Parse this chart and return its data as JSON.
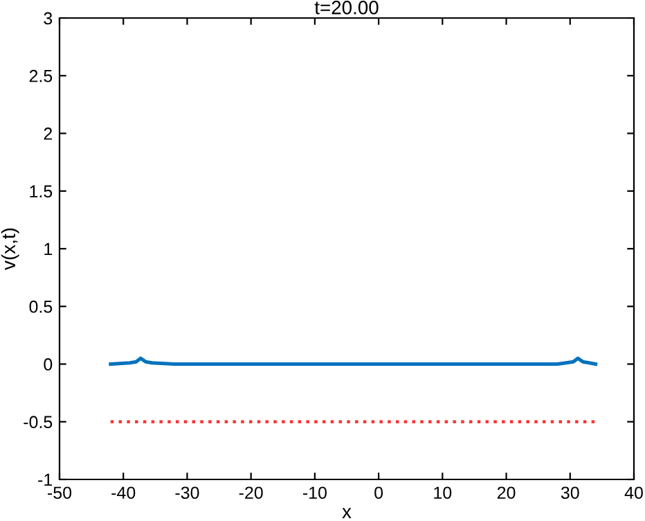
{
  "chart_data": {
    "type": "line",
    "title": "t=20.00",
    "xlabel": "x",
    "ylabel": "v(x,t)",
    "series": [
      {
        "color": "#0072bd",
        "line_style": "solid",
        "x": [
          -42,
          -39,
          -38,
          -37.3,
          -36.5,
          -35.5,
          -32,
          0,
          28,
          30.5,
          31.2,
          32,
          33,
          34
        ],
        "values": [
          0,
          0.01,
          0.02,
          0.05,
          0.02,
          0.01,
          0,
          0,
          0,
          0.02,
          0.05,
          0.02,
          0.01,
          0
        ]
      },
      {
        "color": "#ff3333",
        "line_style": "dotted",
        "x": [
          -42,
          34
        ],
        "values": [
          -0.5,
          -0.5
        ]
      }
    ],
    "xlim": [
      -50,
      40
    ],
    "ylim": [
      -1,
      3
    ],
    "xticks": [
      -50,
      -40,
      -30,
      -20,
      -10,
      0,
      10,
      20,
      30,
      40
    ],
    "yticks": [
      -1,
      -0.5,
      0,
      0.5,
      1,
      1.5,
      2,
      2.5,
      3
    ],
    "grid": false,
    "legend": false
  }
}
